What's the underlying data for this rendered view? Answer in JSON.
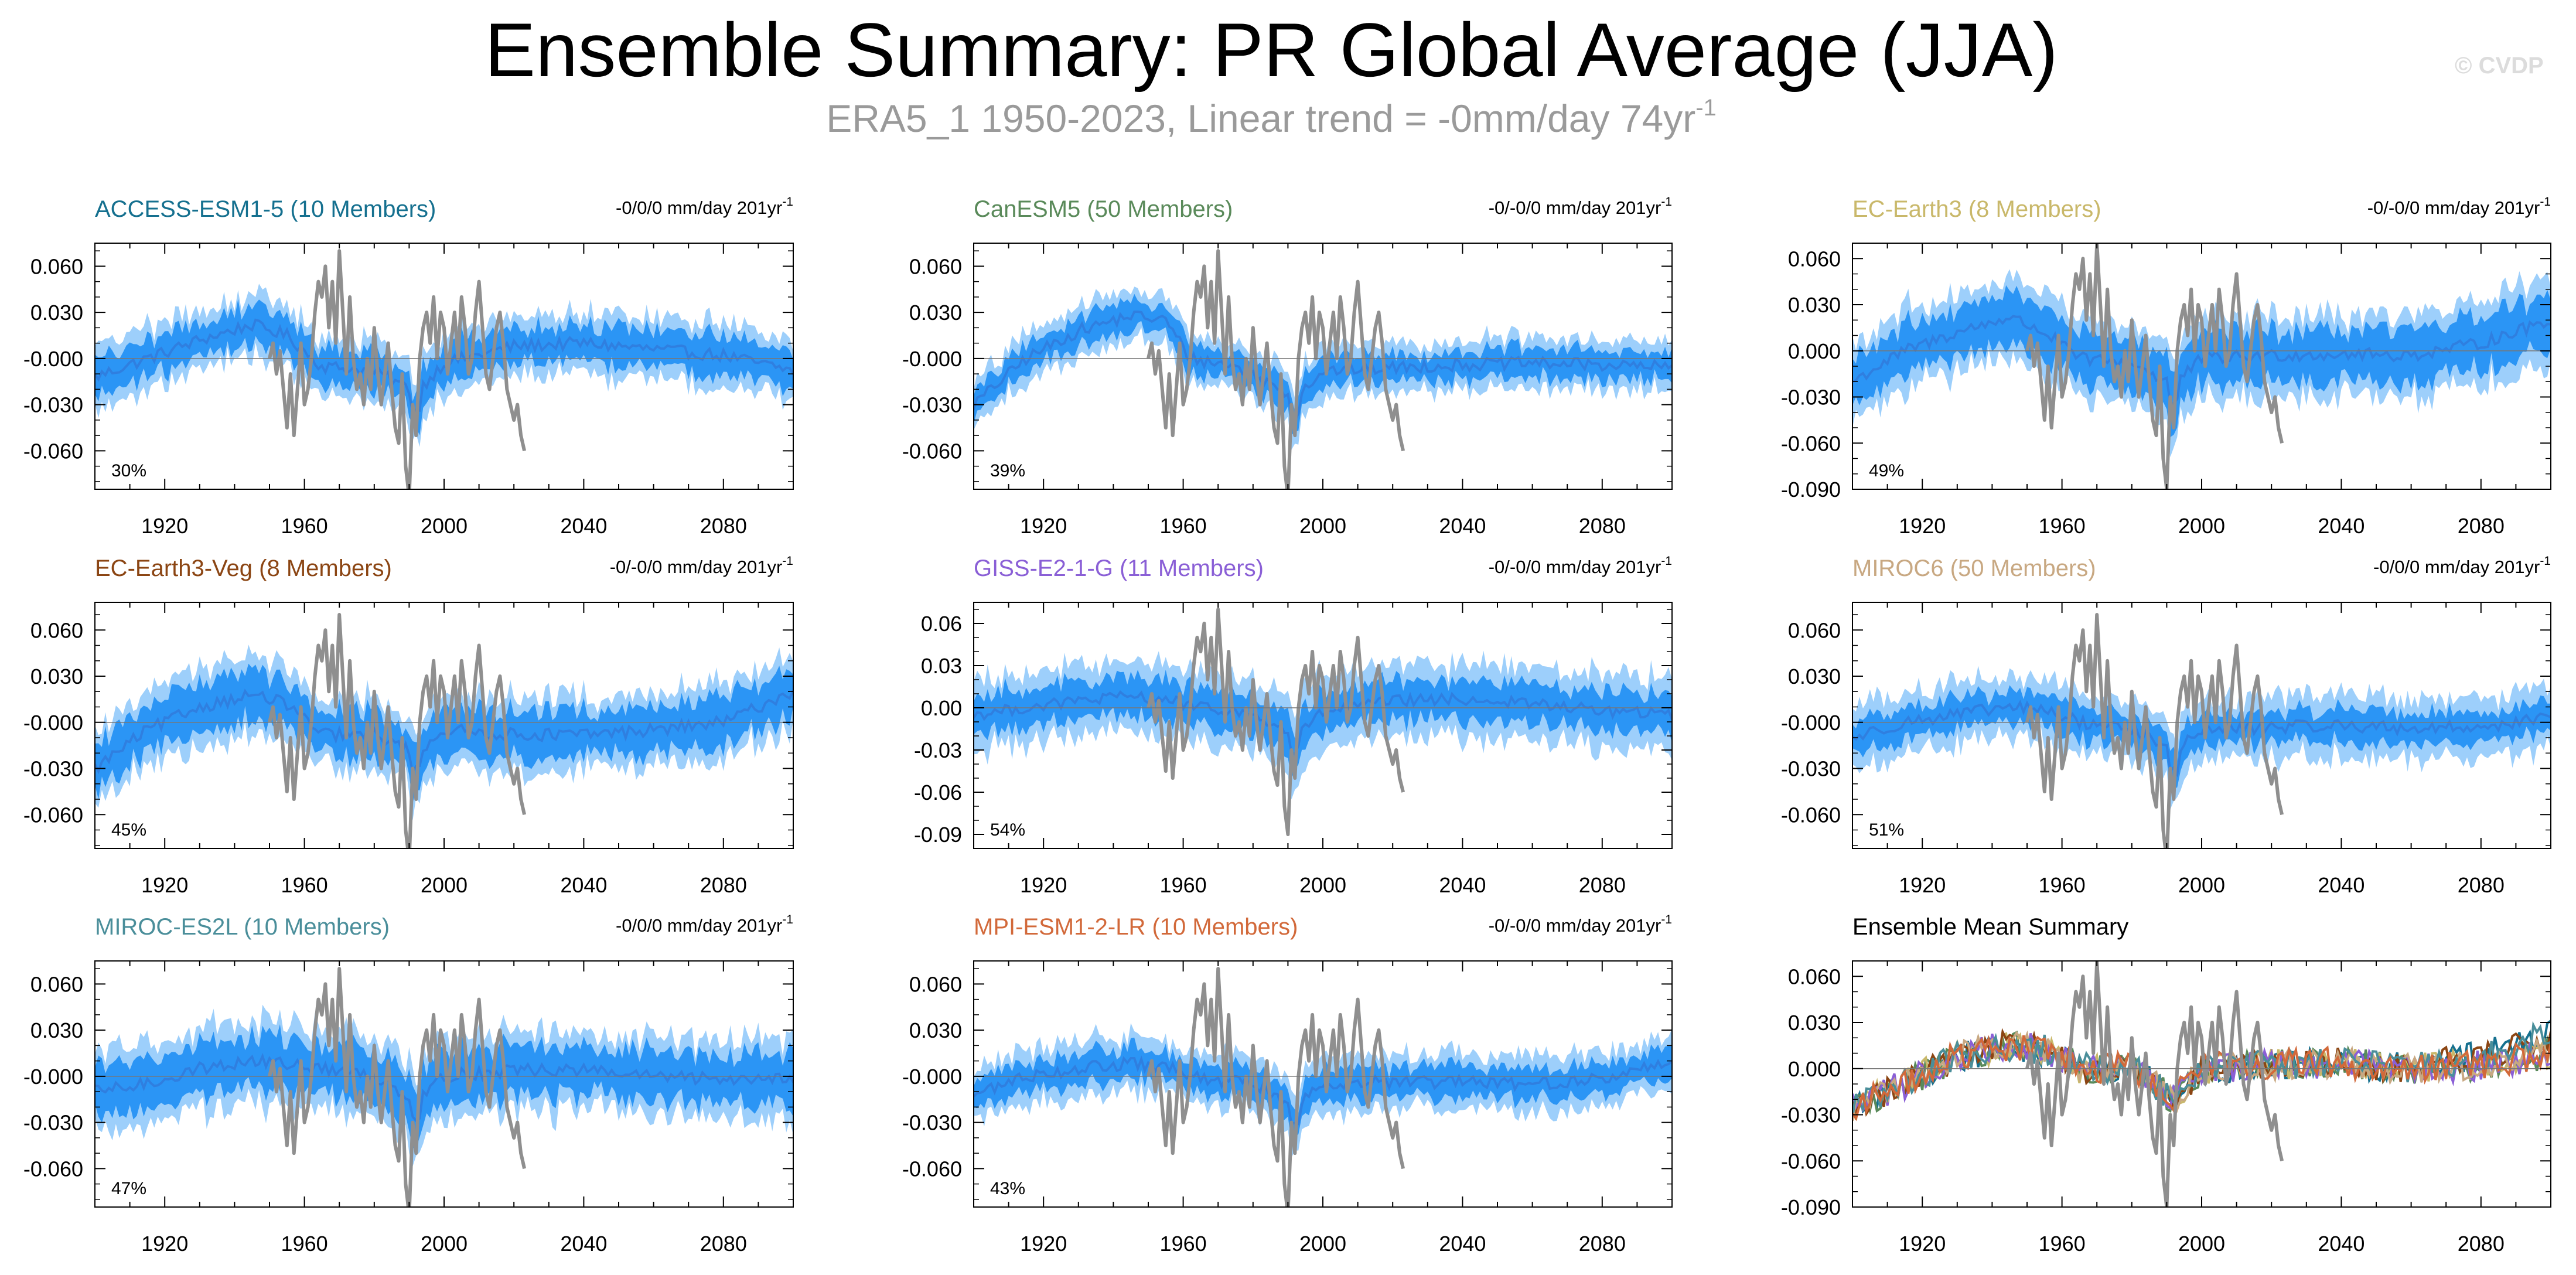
{
  "header": {
    "title": "Ensemble Summary: PR Global Average (JJA)",
    "subtitle_main": "ERA5_1 1950-2023, Linear trend = -0mm/day 74yr",
    "subtitle_sup": "-1",
    "watermark": "© CVDP"
  },
  "colors": {
    "ensemble_band_outer": "#9dcffb",
    "ensemble_band_inner": "#2b95f5",
    "ensemble_mean": "#2f7fe0",
    "observations": "#8f8f8f",
    "axis": "#000000"
  },
  "chart_data": [
    {
      "type": "line",
      "title": "ACCESS-ESM1-5 (10 Members)",
      "title_color": "#15708f",
      "trend_label": "-0/0/0 mm/day 201yr",
      "trend_sup": "-1",
      "percent_label": "30%",
      "xlim": [
        1900,
        2100
      ],
      "xticks": [
        1920,
        1960,
        2000,
        2040,
        2080
      ],
      "ylim": [
        -0.085,
        0.075
      ],
      "yticks": [
        0.06,
        0.03,
        0.0,
        -0.03,
        -0.06
      ],
      "ytick_labels": [
        "0.060",
        "0.030",
        "-0.000",
        "-0.030",
        "-0.060"
      ],
      "ensemble_anchor_x": [
        1900,
        1915,
        1930,
        1945,
        1955,
        1965,
        1980,
        1992,
        2000,
        2020,
        2040,
        2060,
        2080,
        2100
      ],
      "ensemble_anchor_mean": [
        -0.012,
        0.0,
        0.012,
        0.022,
        0.015,
        -0.005,
        -0.008,
        -0.022,
        -0.003,
        0.008,
        0.01,
        0.006,
        0.002,
        -0.008
      ],
      "band_inner_halfwidth": 0.012,
      "band_outer_halfwidth": 0.02,
      "observation_years": [
        1950,
        2023
      ]
    },
    {
      "type": "line",
      "title": "CanESM5 (50 Members)",
      "title_color": "#5a8a5a",
      "trend_label": "-0/-0/0 mm/day 201yr",
      "trend_sup": "-1",
      "percent_label": "39%",
      "xlim": [
        1900,
        2100
      ],
      "xticks": [
        1920,
        1960,
        2000,
        2040,
        2080
      ],
      "ylim": [
        -0.085,
        0.075
      ],
      "yticks": [
        0.06,
        0.03,
        0.0,
        -0.03,
        -0.06
      ],
      "ytick_labels": [
        "0.060",
        "0.030",
        "-0.000",
        "-0.030",
        "-0.060"
      ],
      "ensemble_anchor_x": [
        1900,
        1915,
        1930,
        1945,
        1955,
        1962,
        1975,
        1992,
        2000,
        2020,
        2040,
        2060,
        2080,
        2100
      ],
      "ensemble_anchor_mean": [
        -0.03,
        0.0,
        0.018,
        0.028,
        0.025,
        0.0,
        -0.005,
        -0.025,
        -0.008,
        -0.006,
        -0.004,
        -0.003,
        -0.004,
        -0.006
      ],
      "band_inner_halfwidth": 0.009,
      "band_outer_halfwidth": 0.016,
      "observation_years": [
        1950,
        2023
      ]
    },
    {
      "type": "line",
      "title": "EC-Earth3 (8 Members)",
      "title_color": "#c9b86a",
      "trend_label": "-0/-0/0 mm/day 201yr",
      "trend_sup": "-1",
      "percent_label": "49%",
      "xlim": [
        1900,
        2100
      ],
      "xticks": [
        1920,
        1960,
        2000,
        2040,
        2080
      ],
      "ylim": [
        -0.09,
        0.07
      ],
      "yticks": [
        0.06,
        0.03,
        0.0,
        -0.03,
        -0.06,
        -0.09
      ],
      "ytick_labels": [
        "0.060",
        "0.030",
        "0.000",
        "-0.030",
        "-0.060",
        "-0.090"
      ],
      "ensemble_anchor_x": [
        1900,
        1915,
        1930,
        1945,
        1955,
        1965,
        1980,
        1992,
        2000,
        2020,
        2040,
        2060,
        2080,
        2100
      ],
      "ensemble_anchor_mean": [
        -0.02,
        0.0,
        0.012,
        0.022,
        0.012,
        -0.005,
        -0.008,
        -0.022,
        -0.005,
        -0.003,
        -0.002,
        -0.003,
        0.005,
        0.02
      ],
      "band_inner_halfwidth": 0.016,
      "band_outer_halfwidth": 0.026,
      "observation_years": [
        1950,
        2023
      ]
    },
    {
      "type": "line",
      "title": "EC-Earth3-Veg (8 Members)",
      "title_color": "#8b4513",
      "trend_label": "-0/-0/0 mm/day 201yr",
      "trend_sup": "-1",
      "percent_label": "45%",
      "xlim": [
        1900,
        2100
      ],
      "xticks": [
        1920,
        1960,
        2000,
        2040,
        2080
      ],
      "ylim": [
        -0.082,
        0.078
      ],
      "yticks": [
        0.06,
        0.03,
        0.0,
        -0.03,
        -0.06
      ],
      "ytick_labels": [
        "0.060",
        "0.030",
        "-0.000",
        "-0.030",
        "-0.060"
      ],
      "ensemble_anchor_x": [
        1900,
        1915,
        1930,
        1945,
        1955,
        1965,
        1980,
        1992,
        2000,
        2020,
        2040,
        2060,
        2080,
        2100
      ],
      "ensemble_anchor_mean": [
        -0.03,
        -0.005,
        0.01,
        0.018,
        0.012,
        -0.008,
        -0.008,
        -0.02,
        -0.005,
        -0.008,
        -0.008,
        -0.005,
        0.0,
        0.02
      ],
      "band_inner_halfwidth": 0.015,
      "band_outer_halfwidth": 0.024,
      "observation_years": [
        1950,
        2023
      ]
    },
    {
      "type": "line",
      "title": "GISS-E2-1-G (11 Members)",
      "title_color": "#8a5fd6",
      "trend_label": "-0/-0/0 mm/day 201yr",
      "trend_sup": "-1",
      "percent_label": "54%",
      "xlim": [
        1900,
        2100
      ],
      "xticks": [
        1920,
        1960,
        2000,
        2040,
        2080
      ],
      "ylim": [
        -0.1,
        0.075
      ],
      "yticks": [
        0.06,
        0.03,
        0.0,
        -0.03,
        -0.06,
        -0.09
      ],
      "ytick_labels": [
        "0.06",
        "0.03",
        "0.00",
        "-0.03",
        "-0.06",
        "-0.09"
      ],
      "ensemble_anchor_x": [
        1900,
        1915,
        1930,
        1945,
        1955,
        1965,
        1980,
        1992,
        2000,
        2020,
        2040,
        2060,
        2080,
        2100
      ],
      "ensemble_anchor_mean": [
        -0.005,
        0.0,
        0.005,
        0.008,
        0.006,
        0.0,
        -0.005,
        -0.02,
        -0.003,
        0.005,
        0.006,
        0.003,
        -0.002,
        -0.005
      ],
      "band_inner_halfwidth": 0.014,
      "band_outer_halfwidth": 0.026,
      "observation_years": [
        1950,
        2023
      ]
    },
    {
      "type": "line",
      "title": "MIROC6 (50 Members)",
      "title_color": "#c8a882",
      "trend_label": "-0/0/0 mm/day 201yr",
      "trend_sup": "-1",
      "percent_label": "51%",
      "xlim": [
        1900,
        2100
      ],
      "xticks": [
        1920,
        1960,
        2000,
        2040,
        2080
      ],
      "ylim": [
        -0.082,
        0.078
      ],
      "yticks": [
        0.06,
        0.03,
        0.0,
        -0.03,
        -0.06
      ],
      "ytick_labels": [
        "0.060",
        "0.030",
        "-0.000",
        "-0.030",
        "-0.060"
      ],
      "ensemble_anchor_x": [
        1900,
        1915,
        1930,
        1945,
        1955,
        1965,
        1980,
        1992,
        2000,
        2020,
        2040,
        2060,
        2080,
        2100
      ],
      "ensemble_anchor_mean": [
        -0.01,
        0.0,
        0.005,
        0.01,
        0.008,
        0.0,
        -0.004,
        -0.02,
        -0.005,
        -0.003,
        -0.002,
        -0.004,
        -0.003,
        0.003
      ],
      "band_inner_halfwidth": 0.01,
      "band_outer_halfwidth": 0.02,
      "observation_years": [
        1950,
        2023
      ]
    },
    {
      "type": "line",
      "title": "MIROC-ES2L (10 Members)",
      "title_color": "#4a8e9a",
      "trend_label": "-0/0/0 mm/day 201yr",
      "trend_sup": "-1",
      "percent_label": "47%",
      "xlim": [
        1900,
        2100
      ],
      "xticks": [
        1920,
        1960,
        2000,
        2040,
        2080
      ],
      "ylim": [
        -0.085,
        0.075
      ],
      "yticks": [
        0.06,
        0.03,
        0.0,
        -0.03,
        -0.06
      ],
      "ytick_labels": [
        "0.060",
        "0.030",
        "-0.000",
        "-0.030",
        "-0.060"
      ],
      "ensemble_anchor_x": [
        1900,
        1915,
        1930,
        1945,
        1955,
        1965,
        1980,
        1992,
        2000,
        2020,
        2040,
        2060,
        2080,
        2100
      ],
      "ensemble_anchor_mean": [
        -0.01,
        -0.005,
        0.005,
        0.01,
        0.008,
        0.005,
        0.0,
        -0.015,
        0.0,
        0.004,
        0.004,
        0.0,
        -0.002,
        0.0
      ],
      "band_inner_halfwidth": 0.016,
      "band_outer_halfwidth": 0.026,
      "observation_years": [
        1950,
        2023
      ]
    },
    {
      "type": "line",
      "title": "MPI-ESM1-2-LR (10 Members)",
      "title_color": "#d2693a",
      "trend_label": "-0/-0/0 mm/day 201yr",
      "trend_sup": "-1",
      "percent_label": "43%",
      "xlim": [
        1900,
        2100
      ],
      "xticks": [
        1920,
        1960,
        2000,
        2040,
        2080
      ],
      "ylim": [
        -0.085,
        0.075
      ],
      "yticks": [
        0.06,
        0.03,
        0.0,
        -0.03,
        -0.06
      ],
      "ytick_labels": [
        "0.060",
        "0.030",
        "-0.000",
        "-0.030",
        "-0.060"
      ],
      "ensemble_anchor_x": [
        1900,
        1915,
        1930,
        1945,
        1955,
        1965,
        1980,
        1992,
        2000,
        2020,
        2040,
        2060,
        2080,
        2100
      ],
      "ensemble_anchor_mean": [
        -0.012,
        0.0,
        0.005,
        0.008,
        0.006,
        -0.002,
        -0.004,
        -0.02,
        -0.004,
        -0.004,
        -0.004,
        -0.005,
        -0.002,
        0.01
      ],
      "band_inner_halfwidth": 0.01,
      "band_outer_halfwidth": 0.018,
      "observation_years": [
        1950,
        2023
      ]
    },
    {
      "type": "line",
      "title": "Ensemble Mean Summary",
      "title_color": "#000000",
      "trend_label": "",
      "trend_sup": "",
      "percent_label": "",
      "xlim": [
        1900,
        2100
      ],
      "xticks": [
        1920,
        1960,
        2000,
        2040,
        2080
      ],
      "ylim": [
        -0.09,
        0.07
      ],
      "yticks": [
        0.06,
        0.03,
        0.0,
        -0.03,
        -0.06,
        -0.09
      ],
      "ytick_labels": [
        "0.060",
        "0.030",
        "0.000",
        "-0.030",
        "-0.060",
        "-0.090"
      ],
      "summary": true,
      "observation_years": [
        1950,
        2023
      ]
    }
  ],
  "observations": {
    "series_years": [
      1950,
      1951,
      1952,
      1953,
      1954,
      1955,
      1956,
      1957,
      1958,
      1959,
      1960,
      1961,
      1962,
      1963,
      1964,
      1965,
      1966,
      1967,
      1968,
      1969,
      1970,
      1971,
      1972,
      1973,
      1974,
      1975,
      1976,
      1977,
      1978,
      1979,
      1980,
      1981,
      1982,
      1983,
      1984,
      1985,
      1986,
      1987,
      1988,
      1989,
      1990,
      1991,
      1992,
      1993,
      1994,
      1995,
      1996,
      1997,
      1998,
      1999,
      2000,
      2001,
      2002,
      2003,
      2004,
      2005,
      2006,
      2007,
      2008,
      2009,
      2010,
      2011,
      2012,
      2013,
      2014,
      2015,
      2016,
      2017,
      2018,
      2019,
      2020,
      2021,
      2022,
      2023
    ],
    "series_values": [
      0.0,
      0.01,
      -0.01,
      0.005,
      -0.02,
      -0.045,
      -0.01,
      -0.05,
      -0.02,
      0.01,
      -0.03,
      -0.02,
      0.0,
      0.03,
      0.05,
      0.04,
      0.06,
      0.02,
      0.05,
      0.01,
      0.07,
      0.03,
      -0.01,
      0.04,
      0.0,
      -0.02,
      -0.01,
      -0.03,
      0.0,
      -0.02,
      0.02,
      -0.01,
      -0.03,
      -0.01,
      0.01,
      -0.02,
      -0.045,
      -0.055,
      -0.01,
      -0.07,
      -0.09,
      -0.03,
      -0.05,
      0.0,
      0.02,
      0.03,
      0.01,
      0.04,
      0.0,
      0.03,
      0.02,
      -0.01,
      0.01,
      0.03,
      0.0,
      0.04,
      0.02,
      -0.01,
      0.0,
      0.03,
      0.05,
      0.02,
      -0.01,
      -0.02,
      0.0,
      0.02,
      0.03,
      0.01,
      -0.02,
      -0.03,
      -0.04,
      -0.03,
      -0.05,
      -0.06
    ]
  },
  "summary_series_colors": [
    "#15708f",
    "#5a8a5a",
    "#c9b86a",
    "#8b4513",
    "#8a5fd6",
    "#c8a882",
    "#4a8e9a",
    "#d2693a"
  ]
}
